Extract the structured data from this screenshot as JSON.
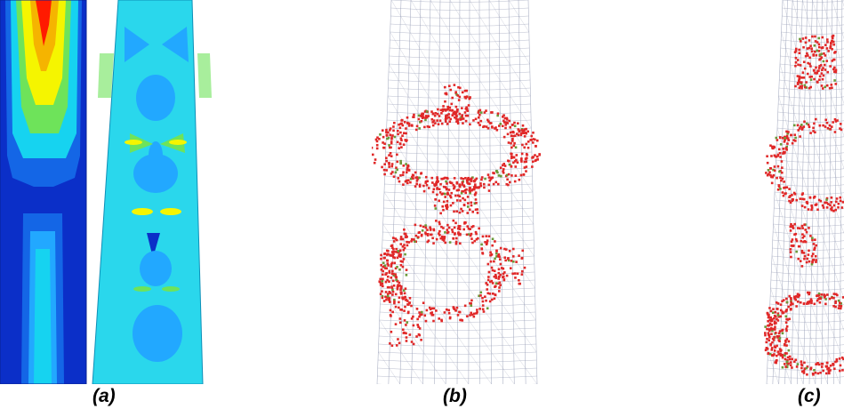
{
  "figure": {
    "panels": [
      {
        "id": "a",
        "caption": "(a)"
      },
      {
        "id": "b",
        "caption": "(b)"
      },
      {
        "id": "c",
        "caption": "(c)"
      }
    ],
    "colors": {
      "contour_red": "#ff1a00",
      "contour_yellow": "#f5f500",
      "contour_green": "#6ee35a",
      "contour_cyan": "#16d3f0",
      "contour_lightblue": "#22a8ff",
      "contour_blue": "#1466e6",
      "contour_darkblue": "#0b2fc8",
      "crack_red": "#e02828",
      "crack_green": "#6a9a3a",
      "mesh": "#9aa0b8"
    }
  }
}
